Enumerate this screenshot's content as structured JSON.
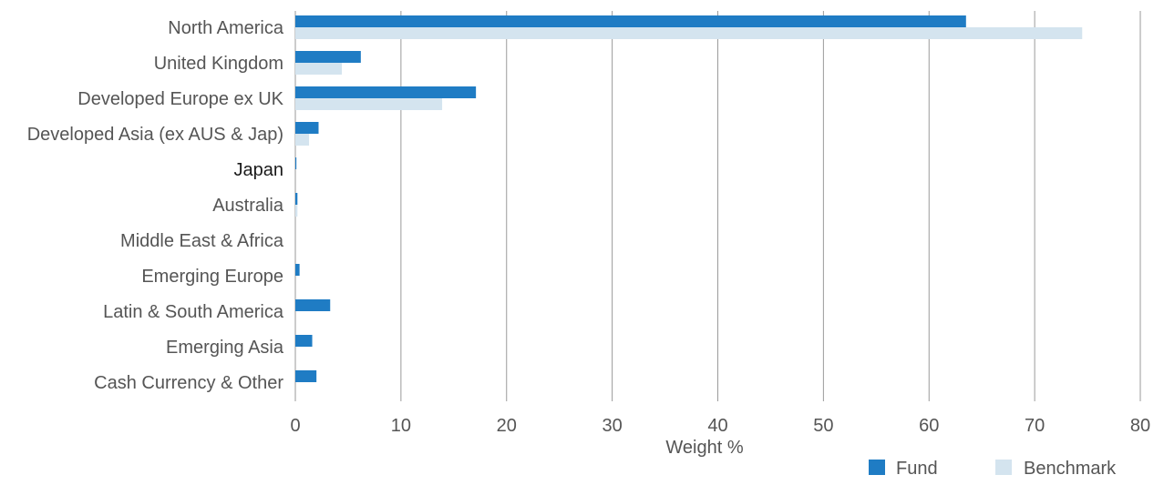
{
  "chart_data": {
    "type": "bar",
    "orientation": "horizontal",
    "categories": [
      "North America",
      "United Kingdom",
      "Developed Europe ex UK",
      "Developed Asia (ex AUS & Jap)",
      "Japan",
      "Australia",
      "Middle East & Africa",
      "Emerging Europe",
      "Latin & South America",
      "Emerging Asia",
      "Cash Currency & Other"
    ],
    "series": [
      {
        "name": "Fund",
        "color": "#1f7cc4",
        "values": [
          63.5,
          6.2,
          17.1,
          2.2,
          0.1,
          0.2,
          0.0,
          0.4,
          3.3,
          1.6,
          2.0
        ]
      },
      {
        "name": "Benchmark",
        "color": "#d4e4ef",
        "values": [
          74.5,
          4.4,
          13.9,
          1.3,
          0.0,
          0.2,
          0.0,
          0.0,
          0.0,
          0.0,
          0.0
        ]
      }
    ],
    "xlabel": "Weight %",
    "ylabel": "",
    "xlim": [
      0,
      80
    ],
    "x_ticks": [
      0,
      10,
      20,
      30,
      40,
      50,
      60,
      70,
      80
    ],
    "grid": "vertical",
    "legend_position": "bottom-right",
    "highlighted_category": "Japan"
  }
}
